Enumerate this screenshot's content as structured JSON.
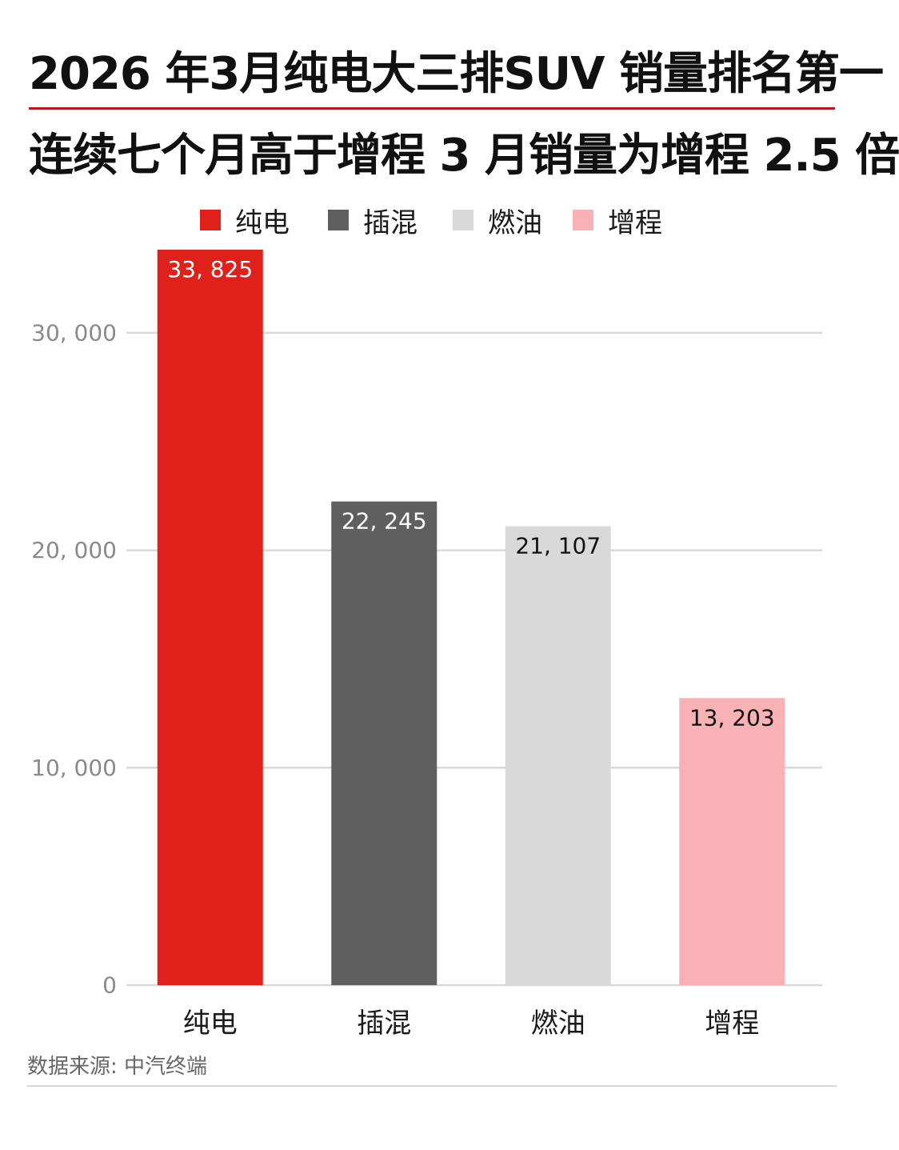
{
  "title_line1": "2026 年3月纯电大三排SUV 销量排名第一",
  "title_line2": "连续七个月高于增程 3 月销量为增程 2.5 倍",
  "legend": [
    {
      "label": "纯电",
      "color": "#e0201b"
    },
    {
      "label": "插混",
      "color": "#5f5f5f"
    },
    {
      "label": "燃油",
      "color": "#d9d9d9"
    },
    {
      "label": "增程",
      "color": "#f8b1b4"
    }
  ],
  "source": "数据来源: 中汽终端",
  "chart_data": {
    "type": "bar",
    "categories": [
      "纯电",
      "插混",
      "燃油",
      "增程"
    ],
    "values": [
      33825,
      22245,
      21107,
      13203
    ],
    "value_labels": [
      "33, 825",
      "22, 245",
      "21, 107",
      "13, 203"
    ],
    "colors": [
      "#e0201b",
      "#5f5f5f",
      "#d9d9d9",
      "#f8b1b4"
    ],
    "label_colors": [
      "#ffffff",
      "#ffffff",
      "#111111",
      "#111111"
    ],
    "yticks": [
      0,
      10000,
      20000,
      30000
    ],
    "ytick_labels": [
      "0",
      "10, 000",
      "20, 000",
      "30, 000"
    ],
    "ylim": [
      0,
      33825
    ],
    "grid": true,
    "legend_position": "top-center"
  }
}
